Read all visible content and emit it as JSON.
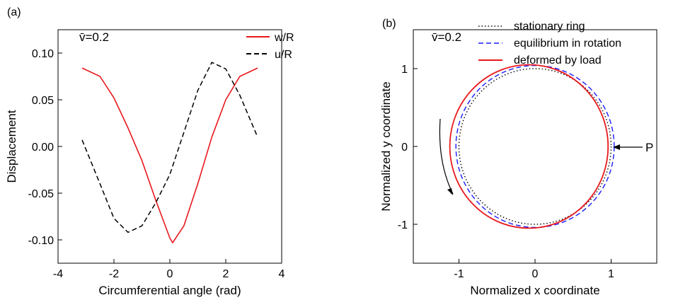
{
  "chart_data": [
    {
      "panel_label": "(a)",
      "type": "line",
      "annotation": "v̄=0.2",
      "xlabel": "Circumferential angle (rad)",
      "ylabel": "Displacement",
      "xlim": [
        -4,
        4
      ],
      "ylim": [
        -0.125,
        0.125
      ],
      "xticks": [
        -4,
        -2,
        0,
        2,
        4
      ],
      "xtick_labels": [
        "-4",
        "-2",
        "0",
        "2",
        "4"
      ],
      "yticks": [
        -0.1,
        -0.05,
        0.0,
        0.05,
        0.1
      ],
      "ytick_labels": [
        "-0.10",
        "-0.05",
        "0.00",
        "0.05",
        "0.10"
      ],
      "grid": false,
      "legend": "top-right",
      "series": [
        {
          "name": "w/R",
          "color": "#e8181c",
          "style": "solid",
          "x": [
            -3.14,
            -2.5,
            -2.0,
            -1.5,
            -1.0,
            -0.5,
            0.0,
            0.1,
            0.5,
            1.0,
            1.5,
            2.0,
            2.5,
            3.14
          ],
          "y": [
            0.084,
            0.075,
            0.052,
            0.02,
            -0.015,
            -0.058,
            -0.098,
            -0.103,
            -0.085,
            -0.04,
            0.01,
            0.05,
            0.075,
            0.084
          ]
        },
        {
          "name": "u/R",
          "color": "#000000",
          "style": "dashed",
          "x": [
            -3.14,
            -2.5,
            -2.0,
            -1.5,
            -1.0,
            -0.5,
            0.0,
            0.5,
            1.0,
            1.5,
            2.0,
            2.5,
            3.14
          ],
          "y": [
            0.007,
            -0.04,
            -0.077,
            -0.092,
            -0.085,
            -0.06,
            -0.03,
            0.015,
            0.06,
            0.09,
            0.083,
            0.055,
            0.01
          ]
        }
      ]
    },
    {
      "panel_label": "(b)",
      "type": "line",
      "annotation": "v̄=0.2",
      "xlabel": "Normalized x coordinate",
      "ylabel": "Normalized y coordinate",
      "xlim": [
        -1.6,
        1.6
      ],
      "ylim": [
        -1.5,
        1.5
      ],
      "xticks": [
        -1,
        0,
        1
      ],
      "xtick_labels": [
        "-1",
        "0",
        "1"
      ],
      "yticks": [
        -1,
        0,
        1
      ],
      "ytick_labels": [
        "-1",
        "0",
        "1"
      ],
      "grid": false,
      "legend": "top-right",
      "load_label": "P",
      "series": [
        {
          "name": "stationary ring",
          "color": "#000000",
          "style": "dotted",
          "center": [
            0,
            0
          ],
          "radius_x": 1.0,
          "radius_y": 1.0
        },
        {
          "name": "equilibrium in rotation",
          "color": "#1a1aff",
          "style": "dashed",
          "center": [
            0,
            0
          ],
          "radius_x": 1.04,
          "radius_y": 1.04
        },
        {
          "name": "deformed by load",
          "color": "#e8181c",
          "style": "solid",
          "center": [
            -0.08,
            0
          ],
          "radius_x": 1.04,
          "radius_y": 1.05
        }
      ]
    }
  ]
}
